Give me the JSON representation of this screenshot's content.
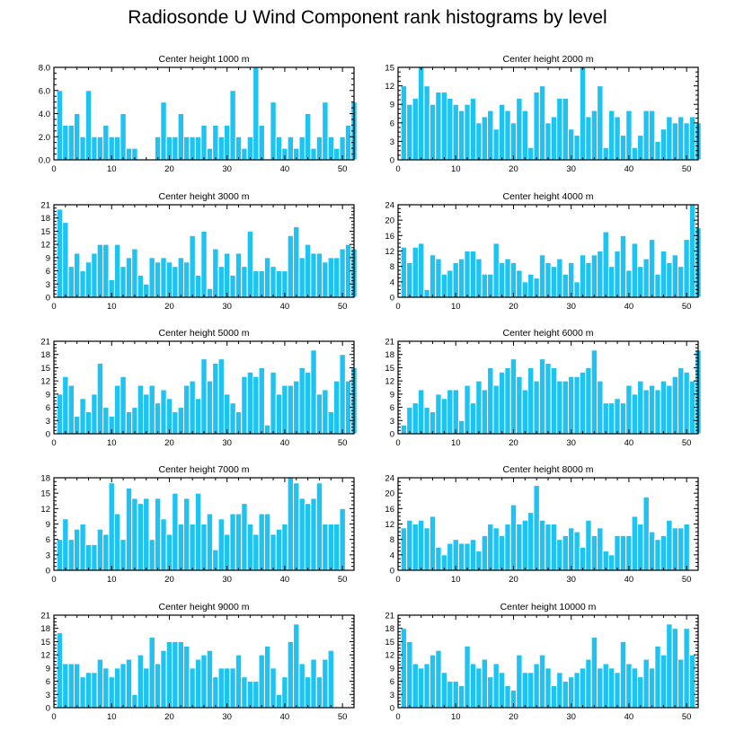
{
  "title": "Radiosonde U Wind Component rank histograms by level",
  "colors": {
    "bar": "#1ec3f2",
    "bar_edge": "#ffffff",
    "axis": "#000000"
  },
  "chart_data": [
    {
      "type": "bar",
      "title": "Center height 1000 m",
      "xlim": [
        0,
        52
      ],
      "ylim": [
        0,
        8
      ],
      "xticks": [
        0,
        10,
        20,
        30,
        40,
        50
      ],
      "yticks": [
        0,
        2,
        4,
        6,
        8
      ],
      "ytick_labels": [
        "0.0",
        "2.0",
        "4.0",
        "6.0",
        "8.0"
      ],
      "values": [
        6,
        3,
        3,
        4,
        2,
        6,
        2,
        2,
        3,
        2,
        2,
        4,
        1,
        1,
        0,
        0,
        0,
        2,
        5,
        2,
        2,
        4,
        2,
        2,
        2,
        3,
        1,
        3,
        2,
        3,
        6,
        2,
        1,
        2,
        8,
        3,
        0,
        5,
        2,
        1,
        2,
        1,
        2,
        4,
        1,
        2,
        5,
        2,
        1,
        2,
        3,
        5
      ]
    },
    {
      "type": "bar",
      "title": "Center height 2000 m",
      "xlim": [
        0,
        52
      ],
      "ylim": [
        0,
        15
      ],
      "xticks": [
        0,
        10,
        20,
        30,
        40,
        50
      ],
      "yticks": [
        0,
        3,
        6,
        9,
        12,
        15
      ],
      "ytick_labels": [
        "0",
        "3",
        "6",
        "9",
        "12",
        "15"
      ],
      "values": [
        12,
        9,
        10,
        15,
        12,
        9,
        11,
        11,
        10,
        9,
        8,
        9,
        10,
        6,
        7,
        8,
        5,
        9,
        8,
        6,
        10,
        8,
        2,
        11,
        12,
        6,
        7,
        10,
        10,
        5,
        4,
        15,
        7,
        8,
        12,
        2,
        8,
        7,
        4,
        8,
        2,
        4,
        8,
        8,
        3,
        5,
        7,
        6,
        7,
        6,
        7,
        6
      ]
    },
    {
      "type": "bar",
      "title": "Center height 3000 m",
      "xlim": [
        0,
        52
      ],
      "ylim": [
        0,
        21
      ],
      "xticks": [
        0,
        10,
        20,
        30,
        40,
        50
      ],
      "yticks": [
        0,
        3,
        6,
        9,
        12,
        15,
        18,
        21
      ],
      "ytick_labels": [
        "0",
        "3",
        "6",
        "9",
        "12",
        "15",
        "18",
        "21"
      ],
      "values": [
        20,
        17,
        7,
        10,
        6,
        8,
        10,
        12,
        12,
        4,
        12,
        7,
        9,
        11,
        5,
        3,
        9,
        8,
        9,
        8,
        7,
        9,
        8,
        14,
        5,
        15,
        2,
        11,
        7,
        10,
        5,
        10,
        7,
        15,
        6,
        6,
        9,
        7,
        6,
        6,
        14,
        16,
        9,
        12,
        10,
        10,
        8,
        9,
        9,
        11,
        12,
        11
      ]
    },
    {
      "type": "bar",
      "title": "Center height 4000 m",
      "xlim": [
        0,
        52
      ],
      "ylim": [
        0,
        24
      ],
      "xticks": [
        0,
        10,
        20,
        30,
        40,
        50
      ],
      "yticks": [
        0,
        4,
        8,
        12,
        16,
        20,
        24
      ],
      "ytick_labels": [
        "0",
        "4",
        "8",
        "12",
        "16",
        "20",
        "24"
      ],
      "values": [
        13,
        9,
        13,
        14,
        2,
        11,
        10,
        6,
        7,
        9,
        10,
        12,
        12,
        10,
        6,
        6,
        14,
        9,
        10,
        9,
        7,
        4,
        6,
        5,
        11,
        9,
        8,
        10,
        6,
        9,
        4,
        11,
        9,
        11,
        12,
        17,
        8,
        12,
        16,
        7,
        14,
        8,
        10,
        15,
        6,
        12,
        9,
        11,
        8,
        15,
        24,
        18
      ]
    },
    {
      "type": "bar",
      "title": "Center height 5000 m",
      "xlim": [
        0,
        52
      ],
      "ylim": [
        0,
        21
      ],
      "xticks": [
        0,
        10,
        20,
        30,
        40,
        50
      ],
      "yticks": [
        0,
        3,
        6,
        9,
        12,
        15,
        18,
        21
      ],
      "ytick_labels": [
        "0",
        "3",
        "6",
        "9",
        "12",
        "15",
        "18",
        "21"
      ],
      "values": [
        9,
        13,
        11,
        4,
        8,
        5,
        9,
        16,
        6,
        4,
        11,
        13,
        5,
        6,
        11,
        9,
        11,
        7,
        10,
        8,
        5,
        6,
        11,
        12,
        8,
        17,
        12,
        16,
        17,
        9,
        7,
        5,
        13,
        14,
        13,
        15,
        2,
        14,
        9,
        11,
        11,
        12,
        15,
        14,
        19,
        9,
        10,
        5,
        12,
        18,
        12,
        15
      ]
    },
    {
      "type": "bar",
      "title": "Center height 6000 m",
      "xlim": [
        0,
        52
      ],
      "ylim": [
        0,
        21
      ],
      "xticks": [
        0,
        10,
        20,
        30,
        40,
        50
      ],
      "yticks": [
        0,
        3,
        6,
        9,
        12,
        15,
        18,
        21
      ],
      "ytick_labels": [
        "0",
        "3",
        "6",
        "9",
        "12",
        "15",
        "18",
        "21"
      ],
      "values": [
        2,
        6,
        7,
        10,
        6,
        5,
        9,
        8,
        10,
        10,
        3,
        11,
        7,
        12,
        10,
        15,
        11,
        14,
        15,
        17,
        13,
        10,
        15,
        12,
        17,
        16,
        15,
        12,
        12,
        13,
        13,
        14,
        15,
        19,
        12,
        7,
        7,
        8,
        7,
        11,
        9,
        12,
        10,
        11,
        10,
        12,
        11,
        13,
        15,
        14,
        12,
        19
      ]
    },
    {
      "type": "bar",
      "title": "Center height 7000 m",
      "xlim": [
        0,
        52
      ],
      "ylim": [
        0,
        18
      ],
      "xticks": [
        0,
        10,
        20,
        30,
        40,
        50
      ],
      "yticks": [
        0,
        3,
        6,
        9,
        12,
        15,
        18
      ],
      "ytick_labels": [
        "0",
        "3",
        "6",
        "9",
        "12",
        "15",
        "18"
      ],
      "values": [
        6,
        10,
        6,
        8,
        9,
        5,
        5,
        8,
        7,
        17,
        11,
        6,
        16,
        14,
        13,
        14,
        6,
        14,
        10,
        7,
        15,
        9,
        14,
        9,
        15,
        9,
        11,
        4,
        10,
        7,
        11,
        11,
        13,
        9,
        7,
        11,
        11,
        7,
        8,
        9,
        18,
        17,
        14,
        13,
        14,
        17,
        9,
        9,
        9,
        12,
        0,
        0
      ]
    },
    {
      "type": "bar",
      "title": "Center height 8000 m",
      "xlim": [
        0,
        52
      ],
      "ylim": [
        0,
        24
      ],
      "xticks": [
        0,
        10,
        20,
        30,
        40,
        50
      ],
      "yticks": [
        0,
        4,
        8,
        12,
        16,
        20,
        24
      ],
      "ytick_labels": [
        "0",
        "4",
        "8",
        "12",
        "16",
        "20",
        "24"
      ],
      "values": [
        11,
        13,
        12,
        13,
        11,
        14,
        6,
        4,
        7,
        8,
        7,
        7,
        8,
        5,
        9,
        12,
        11,
        9,
        12,
        17,
        12,
        13,
        15,
        22,
        13,
        12,
        12,
        8,
        9,
        11,
        10,
        6,
        13,
        9,
        11,
        5,
        4,
        9,
        9,
        9,
        14,
        12,
        19,
        10,
        8,
        9,
        13,
        11,
        11,
        12,
        0,
        0
      ]
    },
    {
      "type": "bar",
      "title": "Center height 9000 m",
      "xlim": [
        0,
        52
      ],
      "ylim": [
        0,
        21
      ],
      "xticks": [
        0,
        10,
        20,
        30,
        40,
        50
      ],
      "yticks": [
        0,
        3,
        6,
        9,
        12,
        15,
        18,
        21
      ],
      "ytick_labels": [
        "0",
        "3",
        "6",
        "9",
        "12",
        "15",
        "18",
        "21"
      ],
      "values": [
        17,
        10,
        10,
        10,
        7,
        8,
        8,
        11,
        9,
        7,
        9,
        10,
        11,
        3,
        12,
        9,
        16,
        10,
        13,
        15,
        15,
        15,
        14,
        9,
        11,
        12,
        13,
        7,
        9,
        9,
        9,
        12,
        7,
        6,
        6,
        12,
        14,
        9,
        3,
        7,
        15,
        19,
        10,
        7,
        11,
        7,
        11,
        13,
        0,
        0,
        0,
        0
      ]
    },
    {
      "type": "bar",
      "title": "Center height 10000 m",
      "xlim": [
        0,
        52
      ],
      "ylim": [
        0,
        21
      ],
      "xticks": [
        0,
        10,
        20,
        30,
        40,
        50
      ],
      "yticks": [
        0,
        3,
        6,
        9,
        12,
        15,
        18,
        21
      ],
      "ytick_labels": [
        "0",
        "3",
        "6",
        "9",
        "12",
        "15",
        "18",
        "21"
      ],
      "values": [
        18,
        15,
        10,
        9,
        10,
        12,
        13,
        8,
        6,
        6,
        5,
        14,
        10,
        9,
        11,
        7,
        10,
        8,
        5,
        4,
        12,
        8,
        8,
        10,
        12,
        9,
        5,
        8,
        6,
        7,
        8,
        9,
        11,
        16,
        9,
        10,
        9,
        8,
        15,
        10,
        9,
        7,
        11,
        9,
        14,
        12,
        19,
        18,
        11,
        18,
        12,
        0
      ]
    }
  ]
}
